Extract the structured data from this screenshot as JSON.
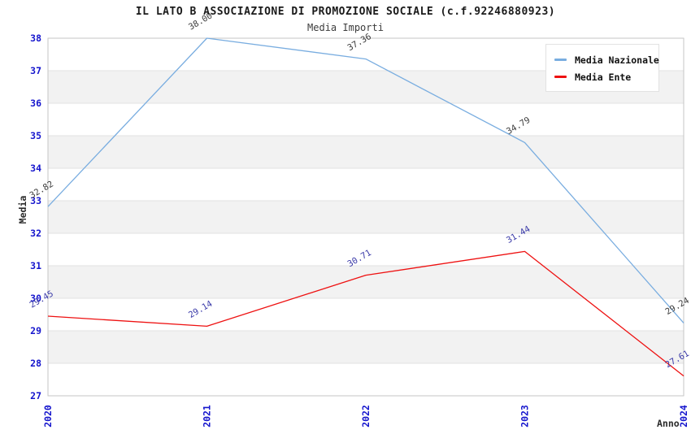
{
  "title": "IL LATO B ASSOCIAZIONE DI PROMOZIONE SOCIALE (c.f.92246880923)",
  "subtitle": "Media Importi",
  "axes": {
    "xlabel": "Anno",
    "ylabel": "Media"
  },
  "style": {
    "tick_label_color": "#1515cd",
    "band_fill": "#f2f2f2",
    "gridline_color": "#e2e2e2",
    "plot_border_color": "#c6c6c6",
    "title_color": "#1a1a1a",
    "legend_text_color": "#111111"
  },
  "chart_data": {
    "type": "line",
    "title": "IL LATO B ASSOCIAZIONE DI PROMOZIONE SOCIALE (c.f.92246880923)",
    "subtitle": "Media Importi",
    "xlabel": "Anno",
    "ylabel": "Media",
    "categories": [
      "2020",
      "2021",
      "2022",
      "2023",
      "2024"
    ],
    "series": [
      {
        "name": "Media Nazionale",
        "values": [
          32.82,
          38.0,
          37.36,
          34.79,
          29.24
        ],
        "color": "#79ade0",
        "label_color": "#3b3b3b"
      },
      {
        "name": "Media Ente",
        "values": [
          29.45,
          29.14,
          30.71,
          31.44,
          27.61
        ],
        "color": "#ee1111",
        "label_color": "#3939a8"
      }
    ],
    "ylim": [
      27,
      38
    ],
    "ytick_step": 1,
    "grid": "horizontal-alternating-bands",
    "legend_position": "top-right",
    "point_labels_shown": true,
    "point_label_rotation_deg": -30,
    "xtick_rotation_deg": -90
  }
}
